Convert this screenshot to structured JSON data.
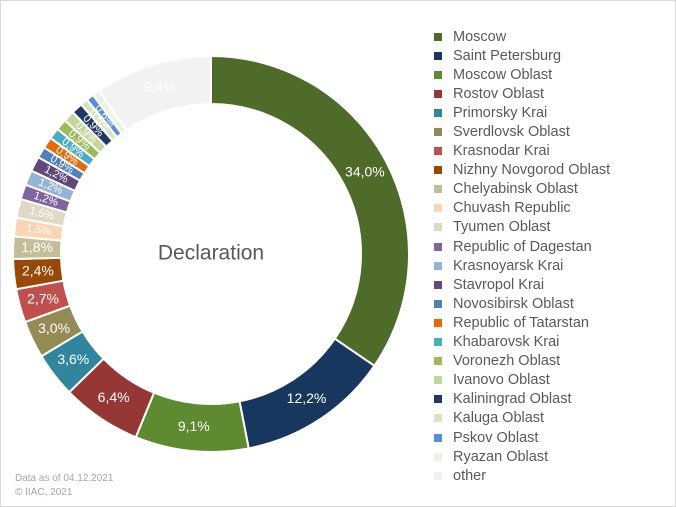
{
  "chart_data": {
    "type": "pie",
    "center_label": "Declaration",
    "legend_position": "right",
    "slices": [
      {
        "name": "Moscow",
        "value": 34.0,
        "label": "34,0%",
        "color": "#4e6b2a"
      },
      {
        "name": "Saint Petersburg",
        "value": 12.2,
        "label": "12,2%",
        "color": "#17375e"
      },
      {
        "name": "Moscow Oblast",
        "value": 9.1,
        "label": "9,1%",
        "color": "#5e8a30"
      },
      {
        "name": "Rostov Oblast",
        "value": 6.4,
        "label": "6,4%",
        "color": "#953735"
      },
      {
        "name": "Primorsky Krai",
        "value": 3.6,
        "label": "3,6%",
        "color": "#31859c"
      },
      {
        "name": "Sverdlovsk Oblast",
        "value": 3.0,
        "label": "3,0%",
        "color": "#948a54"
      },
      {
        "name": "Krasnodar Krai",
        "value": 2.7,
        "label": "2,7%",
        "color": "#c0504d"
      },
      {
        "name": "Nizhny Novgorod Oblast",
        "value": 2.4,
        "label": "2,4%",
        "color": "#984807"
      },
      {
        "name": "Chelyabinsk Oblast",
        "value": 1.8,
        "label": "1,8%",
        "color": "#c4bd97"
      },
      {
        "name": "Chuvash Republic",
        "value": 1.5,
        "label": "1,5%",
        "color": "#fbd4b4"
      },
      {
        "name": "Tyumen Oblast",
        "value": 1.5,
        "label": "1,5%",
        "color": "#ddd9c3"
      },
      {
        "name": "Republic of Dagestan",
        "value": 1.2,
        "label": "1,2%",
        "color": "#8064a2"
      },
      {
        "name": "Krasnoyarsk Krai",
        "value": 1.2,
        "label": "1,2%",
        "color": "#95b3d7"
      },
      {
        "name": "Stavropol Krai",
        "value": 1.2,
        "label": "1,2%",
        "color": "#5f497a"
      },
      {
        "name": "Novosibirsk Oblast",
        "value": 0.9,
        "label": "0,9%",
        "color": "#4f81bd"
      },
      {
        "name": "Republic of Tatarstan",
        "value": 0.9,
        "label": "0,9%",
        "color": "#e36c09"
      },
      {
        "name": "Khabarovsk Krai",
        "value": 0.9,
        "label": "0,9%",
        "color": "#4bacc6"
      },
      {
        "name": "Voronezh Oblast",
        "value": 0.9,
        "label": "0,9%",
        "color": "#9bbb59"
      },
      {
        "name": "Ivanovo Oblast",
        "value": 0.9,
        "label": "0,9%",
        "color": "#c3d69b"
      },
      {
        "name": "Kaliningrad Oblast",
        "value": 0.9,
        "label": "0,9%",
        "color": "#1f3864"
      },
      {
        "name": "Kaluga Oblast",
        "value": 0.6,
        "label": "0,6%",
        "color": "#d7e4bd"
      },
      {
        "name": "Pskov Oblast",
        "value": 0.6,
        "label": "0,6%",
        "color": "#558ed5"
      },
      {
        "name": "Ryazan Oblast",
        "value": 0.6,
        "label": "0,6%",
        "color": "#ebf1de"
      },
      {
        "name": "other",
        "value": 9.4,
        "label": "9,4%",
        "color": "#f2f2f2"
      }
    ]
  },
  "footnote": {
    "line1": "Data as of 04.12.2021",
    "line2": "© IIAC, 2021"
  }
}
